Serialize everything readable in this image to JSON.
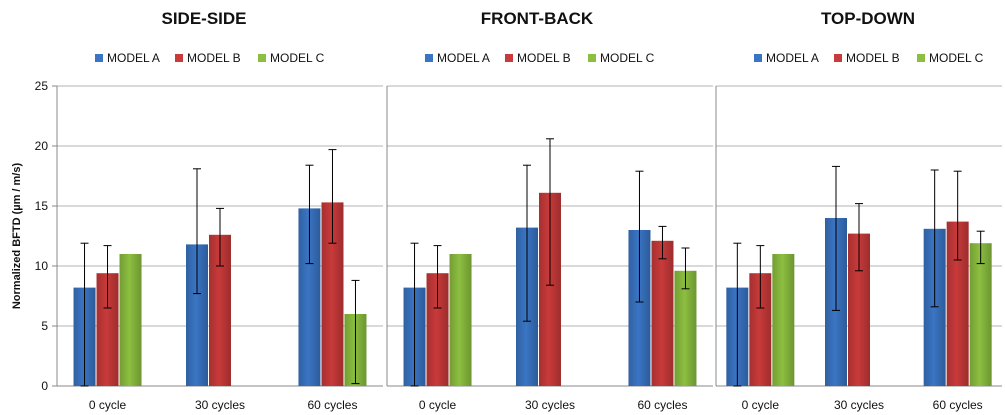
{
  "chart_data": [
    {
      "type": "bar",
      "title": "SIDE-SIDE",
      "ylabel": "Normalized BFTD (µm / m/s)",
      "ylim": [
        0,
        25
      ],
      "yticks": [
        0,
        5,
        10,
        15,
        20,
        25
      ],
      "grid": true,
      "legend_position": "top",
      "categories": [
        "0 cycle",
        "30 cycles",
        "60 cycles"
      ],
      "series": [
        {
          "name": "MODEL A",
          "color": "#3a75c4",
          "values": [
            8.2,
            11.8,
            14.8
          ],
          "err_low": [
            0,
            7.7,
            10.2
          ],
          "err_high": [
            11.9,
            18.1,
            18.4
          ]
        },
        {
          "name": "MODEL B",
          "color": "#c93a3a",
          "values": [
            9.4,
            12.6,
            15.3
          ],
          "err_low": [
            6.5,
            10.0,
            11.9
          ],
          "err_high": [
            11.7,
            14.8,
            19.7
          ]
        },
        {
          "name": "MODEL C",
          "color": "#8cbf40",
          "values": [
            11.0,
            null,
            6.0
          ],
          "err_low": [
            null,
            null,
            0.2
          ],
          "err_high": [
            null,
            null,
            8.8
          ]
        }
      ]
    },
    {
      "type": "bar",
      "title": "FRONT-BACK",
      "ylim": [
        0,
        25
      ],
      "yticks": [
        0,
        5,
        10,
        15,
        20,
        25
      ],
      "grid": true,
      "legend_position": "top",
      "categories": [
        "0 cycle",
        "30 cycles",
        "60 cycles"
      ],
      "series": [
        {
          "name": "MODEL A",
          "color": "#3a75c4",
          "values": [
            8.2,
            13.2,
            13.0
          ],
          "err_low": [
            0,
            5.4,
            7.0
          ],
          "err_high": [
            11.9,
            18.4,
            17.9
          ]
        },
        {
          "name": "MODEL B",
          "color": "#c93a3a",
          "values": [
            9.4,
            16.1,
            12.1
          ],
          "err_low": [
            6.5,
            8.4,
            10.6
          ],
          "err_high": [
            11.7,
            20.6,
            13.3
          ]
        },
        {
          "name": "MODEL C",
          "color": "#8cbf40",
          "values": [
            11.0,
            null,
            9.6
          ],
          "err_low": [
            null,
            null,
            8.1
          ],
          "err_high": [
            null,
            null,
            11.5
          ]
        }
      ]
    },
    {
      "type": "bar",
      "title": "TOP-DOWN",
      "ylim": [
        0,
        25
      ],
      "yticks": [
        0,
        5,
        10,
        15,
        20,
        25
      ],
      "grid": true,
      "legend_position": "top",
      "categories": [
        "0 cycle",
        "30 cycles",
        "60 cycles"
      ],
      "series": [
        {
          "name": "MODEL A",
          "color": "#3a75c4",
          "values": [
            8.2,
            14.0,
            13.1
          ],
          "err_low": [
            0,
            6.3,
            6.6
          ],
          "err_high": [
            11.9,
            18.3,
            18.0
          ]
        },
        {
          "name": "MODEL B",
          "color": "#c93a3a",
          "values": [
            9.4,
            12.7,
            13.7
          ],
          "err_low": [
            6.5,
            9.6,
            10.5
          ],
          "err_high": [
            11.7,
            15.2,
            17.9
          ]
        },
        {
          "name": "MODEL C",
          "color": "#8cbf40",
          "values": [
            11.0,
            null,
            11.9
          ],
          "err_low": [
            null,
            null,
            10.2
          ],
          "err_high": [
            null,
            null,
            12.9
          ]
        }
      ]
    }
  ]
}
